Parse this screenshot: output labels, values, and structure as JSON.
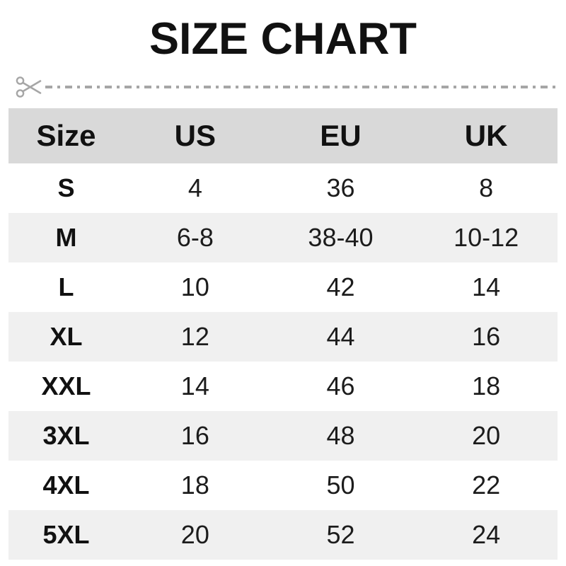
{
  "title": "SIZE CHART",
  "cut_line": {
    "icon": "scissors-icon"
  },
  "colors": {
    "header_bg": "#d9d9d9",
    "stripe_bg": "#f0f0f0",
    "text": "#111111",
    "cut_line": "#a6a6a6"
  },
  "chart_data": {
    "type": "table",
    "title": "SIZE CHART",
    "columns": [
      "Size",
      "US",
      "EU",
      "UK"
    ],
    "rows": [
      [
        "S",
        "4",
        "36",
        "8"
      ],
      [
        "M",
        "6-8",
        "38-40",
        "10-12"
      ],
      [
        "L",
        "10",
        "42",
        "14"
      ],
      [
        "XL",
        "12",
        "44",
        "16"
      ],
      [
        "XXL",
        "14",
        "46",
        "18"
      ],
      [
        "3XL",
        "16",
        "48",
        "20"
      ],
      [
        "4XL",
        "18",
        "50",
        "22"
      ],
      [
        "5XL",
        "20",
        "52",
        "24"
      ]
    ],
    "layout": {
      "header_background": "gray",
      "row_striping": "alternating white / light gray",
      "alignment": "center"
    }
  }
}
